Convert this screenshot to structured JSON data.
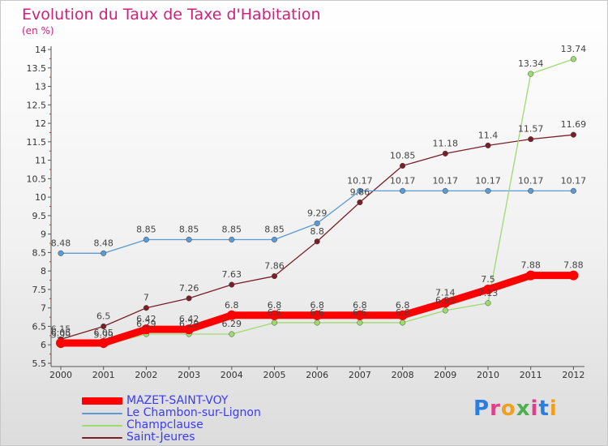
{
  "chart_data": {
    "type": "line",
    "title": "Evolution du Taux de Taxe d'Habitation",
    "subtitle": "(en %)",
    "categories": [
      "2000",
      "2001",
      "2002",
      "2003",
      "2004",
      "2005",
      "2006",
      "2007",
      "2008",
      "2009",
      "2010",
      "2011",
      "2012"
    ],
    "ylim": [
      5.5,
      14
    ],
    "yticks": [
      "5.5",
      "6",
      "6.5",
      "7",
      "7.5",
      "8",
      "8.5",
      "9",
      "9.5",
      "10",
      "10.5",
      "11",
      "11.5",
      "12",
      "12.5",
      "13",
      "13.5",
      "14"
    ],
    "grid": false,
    "legend_position": "bottom-left",
    "series": [
      {
        "name": "Saint-Jeures",
        "color": "#7a1e28",
        "values": [
          6.15,
          6.5,
          7,
          7.26,
          7.63,
          7.86,
          8.8,
          9.86,
          10.85,
          11.18,
          11.4,
          11.57,
          11.69
        ],
        "labels": [
          "6.15",
          "6.5",
          "7",
          "7.26",
          "7.63",
          "7.86",
          "8.8",
          "9.86",
          "10.85",
          "11.18",
          "11.4",
          "11.57",
          "11.69"
        ]
      },
      {
        "name": "Le Chambon-sur-Lignon",
        "color": "#5a9ad5",
        "values": [
          8.48,
          8.48,
          8.85,
          8.85,
          8.85,
          8.85,
          9.29,
          10.17,
          10.17,
          10.17,
          10.17,
          10.17,
          10.17
        ],
        "labels": [
          "8.48",
          "8.48",
          "8.85",
          "8.85",
          "8.85",
          "8.85",
          "9.29",
          "10.17",
          "10.17",
          "10.17",
          "10.17",
          "10.17",
          "10.17"
        ]
      },
      {
        "name": "Champclause",
        "color": "#9ddb6f",
        "values": [
          5.99,
          5.99,
          6.29,
          6.29,
          6.29,
          6.6,
          6.6,
          6.6,
          6.6,
          6.93,
          7.13,
          13.34,
          13.74
        ],
        "labels": [
          "5.99",
          "5.99",
          "6.29",
          "6.29",
          "6.29",
          "6.6",
          "6.6",
          "6.6",
          "6.6",
          "6.93",
          "7.13",
          "13.34",
          "13.74"
        ]
      },
      {
        "name": "MAZET-SAINT-VOY",
        "color": "#ff0000",
        "values": [
          6.05,
          6.05,
          6.42,
          6.42,
          6.8,
          6.8,
          6.8,
          6.8,
          6.8,
          7.14,
          7.5,
          7.88,
          7.88
        ],
        "labels": [
          "6.05",
          "6.05",
          "6.42",
          "6.42",
          "6.8",
          "6.8",
          "6.8",
          "6.8",
          "6.8",
          "7.14",
          "7.5",
          "7.88",
          "7.88"
        ]
      }
    ],
    "legend": [
      {
        "name": "MAZET-SAINT-VOY",
        "color": "#ff0000"
      },
      {
        "name": "Le Chambon-sur-Lignon",
        "color": "#5a9ad5"
      },
      {
        "name": "Champclause",
        "color": "#9ddb6f"
      },
      {
        "name": "Saint-Jeures",
        "color": "#7a1e28"
      }
    ]
  },
  "logo": {
    "text": "Proxiti",
    "letter_colors": [
      "#2a7de1",
      "#e0408a",
      "#f0a020",
      "#4caf50",
      "#e0408a",
      "#2a7de1",
      "#f0a020"
    ]
  }
}
